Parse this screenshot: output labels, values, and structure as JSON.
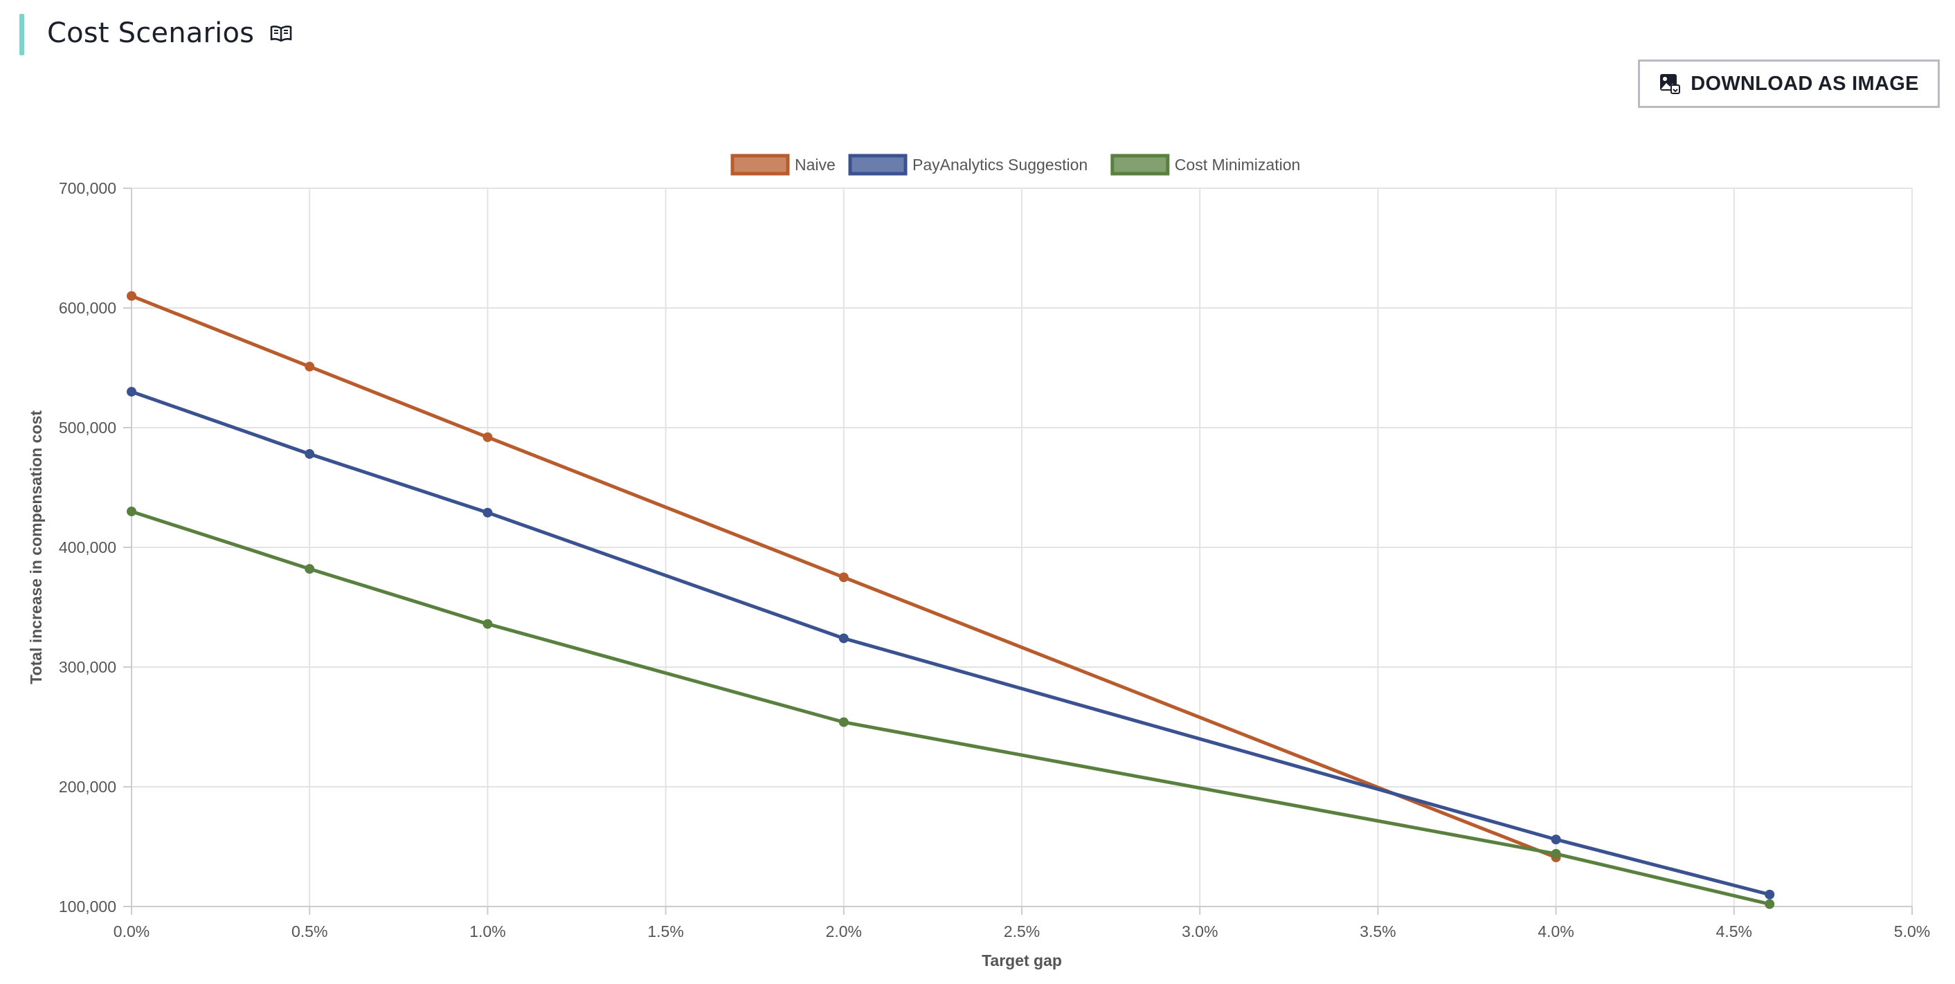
{
  "header": {
    "title": "Cost Scenarios",
    "help_icon": "book-icon"
  },
  "toolbar": {
    "download_label": "DOWNLOAD AS IMAGE",
    "download_icon": "image-icon"
  },
  "colors": {
    "accent": "#7fd3cb",
    "naive": "#b85c2e",
    "payanalytics": "#3a5290",
    "cost_min": "#5a8040"
  },
  "chart_data": {
    "type": "line",
    "xlabel": "Target gap",
    "ylabel": "Total increase in compensation cost",
    "xlim": [
      0,
      5
    ],
    "ylim": [
      100000,
      700000
    ],
    "x_ticks": [
      "0.0%",
      "0.5%",
      "1.0%",
      "1.5%",
      "2.0%",
      "2.5%",
      "3.0%",
      "3.5%",
      "4.0%",
      "4.5%",
      "5.0%"
    ],
    "x_tick_values": [
      0,
      0.5,
      1,
      1.5,
      2,
      2.5,
      3,
      3.5,
      4,
      4.5,
      5
    ],
    "y_ticks": [
      "100,000",
      "200,000",
      "300,000",
      "400,000",
      "500,000",
      "600,000",
      "700,000"
    ],
    "y_tick_values": [
      100000,
      200000,
      300000,
      400000,
      500000,
      600000,
      700000
    ],
    "grid": true,
    "legend_position": "top-center",
    "series": [
      {
        "name": "Naive",
        "color": "#b85c2e",
        "points": [
          [
            0,
            610000
          ],
          [
            0.5,
            551000
          ],
          [
            1.0,
            492000
          ],
          [
            2.0,
            375000
          ],
          [
            4.0,
            141000
          ]
        ]
      },
      {
        "name": "PayAnalytics Suggestion",
        "color": "#3a5290",
        "points": [
          [
            0,
            530000
          ],
          [
            0.5,
            478000
          ],
          [
            1.0,
            429000
          ],
          [
            2.0,
            324000
          ],
          [
            4.0,
            156000
          ],
          [
            4.6,
            110000
          ]
        ]
      },
      {
        "name": "Cost Minimization",
        "color": "#5a8040",
        "points": [
          [
            0,
            430000
          ],
          [
            0.5,
            382000
          ],
          [
            1.0,
            336000
          ],
          [
            2.0,
            254000
          ],
          [
            4.0,
            144000
          ],
          [
            4.6,
            102000
          ]
        ]
      }
    ]
  }
}
